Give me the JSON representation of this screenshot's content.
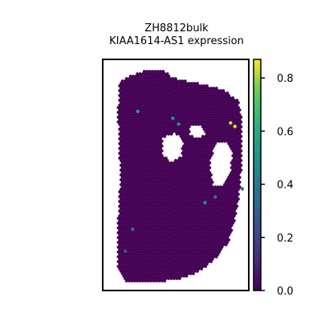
{
  "chart_data": {
    "type": "scatter",
    "title": "ZH8812bulk",
    "subtitle": "KIAA1614-AS1 expression",
    "xlabel": "",
    "ylabel": "",
    "grid": false,
    "colorbar": {
      "colormap": "viridis",
      "range": [
        0.0,
        0.87
      ],
      "ticks": [
        0.0,
        0.2,
        0.4,
        0.6,
        0.8
      ],
      "tick_labels": [
        "0.0",
        "0.2",
        "0.4",
        "0.6",
        "0.8"
      ]
    },
    "background_value": 0.0,
    "nonzero_points": [
      {
        "x": 0.24,
        "y": 0.225,
        "value": 0.55
      },
      {
        "x": 0.48,
        "y": 0.255,
        "value": 0.52
      },
      {
        "x": 0.52,
        "y": 0.28,
        "value": 0.5
      },
      {
        "x": 0.875,
        "y": 0.275,
        "value": 0.83
      },
      {
        "x": 0.905,
        "y": 0.29,
        "value": 0.85
      },
      {
        "x": 0.955,
        "y": 0.56,
        "value": 0.38
      },
      {
        "x": 0.77,
        "y": 0.595,
        "value": 0.38
      },
      {
        "x": 0.7,
        "y": 0.62,
        "value": 0.5
      },
      {
        "x": 0.205,
        "y": 0.735,
        "value": 0.35
      },
      {
        "x": 0.155,
        "y": 0.83,
        "value": 0.27
      }
    ]
  },
  "colors": {
    "background_spot": "#440154",
    "frame": "#000000"
  }
}
